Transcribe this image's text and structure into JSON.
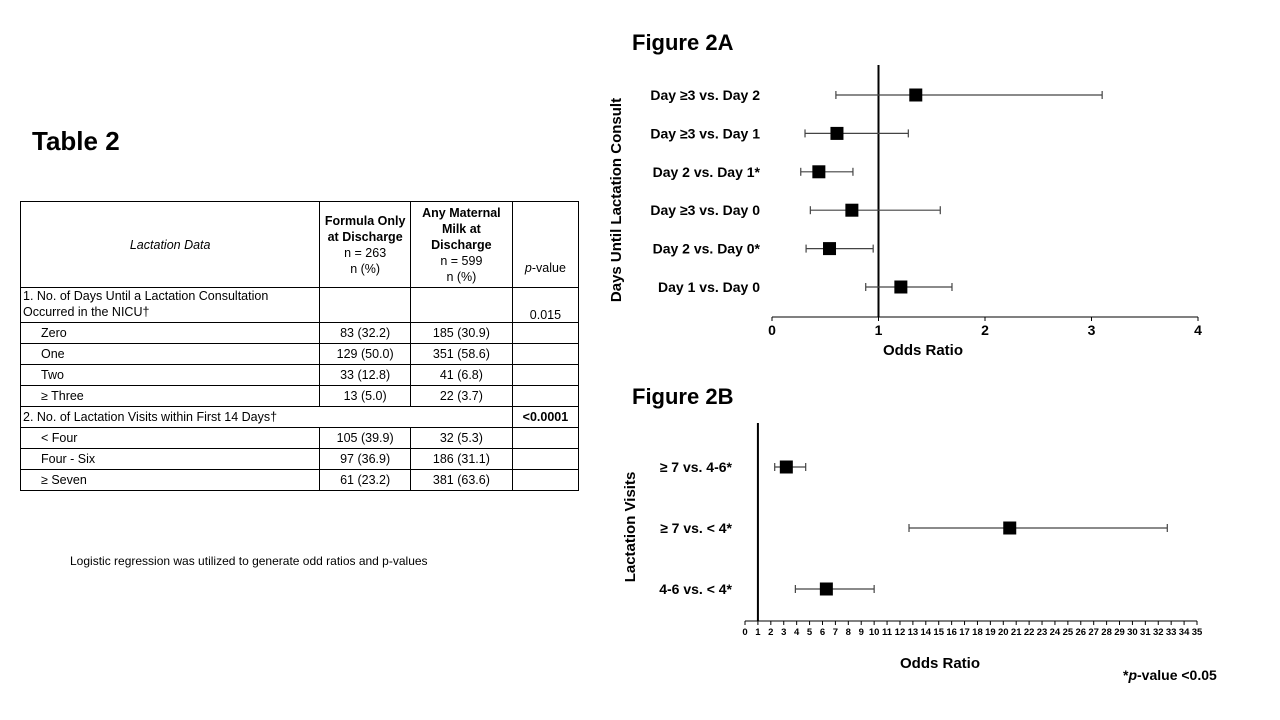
{
  "table": {
    "title": "Table 2",
    "headers": {
      "col1": "Lactation Data",
      "col2_line1": "Formula Only",
      "col2_line2": "at Discharge",
      "col2_n": "n = 263",
      "col2_unit": "n (%)",
      "col3_line1": "Any Maternal",
      "col3_line2": "Milk at",
      "col3_line3": "Discharge",
      "col3_n": "n = 599",
      "col3_unit": "n (%)",
      "col4_italic": "p",
      "col4_rest": "-value"
    },
    "section1": {
      "label_line1": "1. No. of Days Until a Lactation Consultation",
      "label_line2": "Occurred in the NICU†",
      "pvalue": "0.015",
      "rows": [
        {
          "label": "Zero",
          "formula": "83 (32.2)",
          "milk": "185 (30.9)"
        },
        {
          "label": "One",
          "formula": "129 (50.0)",
          "milk": "351 (58.6)"
        },
        {
          "label": "Two",
          "formula": "33 (12.8)",
          "milk": "41 (6.8)"
        },
        {
          "label": "≥ Three",
          "formula": "13 (5.0)",
          "milk": "22 (3.7)"
        }
      ]
    },
    "section2": {
      "label": "2.  No. of Lactation Visits within First 14 Days†",
      "pvalue": "<0.0001",
      "rows": [
        {
          "label": "< Four",
          "formula": "105 (39.9)",
          "milk": "32 (5.3)"
        },
        {
          "label": "Four - Six",
          "formula": "97 (36.9)",
          "milk": "186 (31.1)"
        },
        {
          "label": "≥ Seven",
          "formula": "61 (23.2)",
          "milk": "381 (63.6)"
        }
      ]
    },
    "note": "Logistic regression was utilized to generate odd ratios and p-values"
  },
  "footnote": {
    "star": "*",
    "italic": "p",
    "rest": "-value <0.05"
  },
  "chart_data": [
    {
      "type": "scatter",
      "subtype": "forest-plot",
      "title": "Figure 2A",
      "xlabel": "Odds Ratio",
      "ylabel": "Days Until Lactation Consult",
      "xlim": [
        0,
        4
      ],
      "xticks": [
        0,
        1,
        2,
        3,
        4
      ],
      "reference_line": 1,
      "categories": [
        "Day ≥3 vs. Day 2",
        "Day ≥3 vs. Day 1",
        "Day 2 vs. Day 1*",
        "Day ≥3 vs. Day 0",
        "Day 2 vs. Day 0*",
        "Day 1 vs. Day 0"
      ],
      "values": [
        1.35,
        0.61,
        0.44,
        0.75,
        0.54,
        1.21
      ],
      "ci_low": [
        0.6,
        0.31,
        0.27,
        0.36,
        0.32,
        0.88
      ],
      "ci_high": [
        3.1,
        1.28,
        0.76,
        1.58,
        0.95,
        1.69
      ]
    },
    {
      "type": "scatter",
      "subtype": "forest-plot",
      "title": "Figure 2B",
      "xlabel": "Odds Ratio",
      "ylabel": "Lactation Visits",
      "xlim": [
        0,
        35
      ],
      "xticks": [
        0,
        1,
        2,
        3,
        4,
        5,
        6,
        7,
        8,
        9,
        10,
        11,
        12,
        13,
        14,
        15,
        16,
        17,
        18,
        19,
        20,
        21,
        22,
        23,
        24,
        25,
        26,
        27,
        28,
        29,
        30,
        31,
        32,
        33,
        34,
        35
      ],
      "reference_line": 1,
      "categories": [
        "≥ 7 vs. 4-6*",
        "≥ 7 vs. < 4*",
        "4-6 vs. < 4*"
      ],
      "values": [
        3.2,
        20.5,
        6.3
      ],
      "ci_low": [
        2.3,
        12.7,
        3.9
      ],
      "ci_high": [
        4.7,
        32.7,
        10.0
      ]
    }
  ]
}
